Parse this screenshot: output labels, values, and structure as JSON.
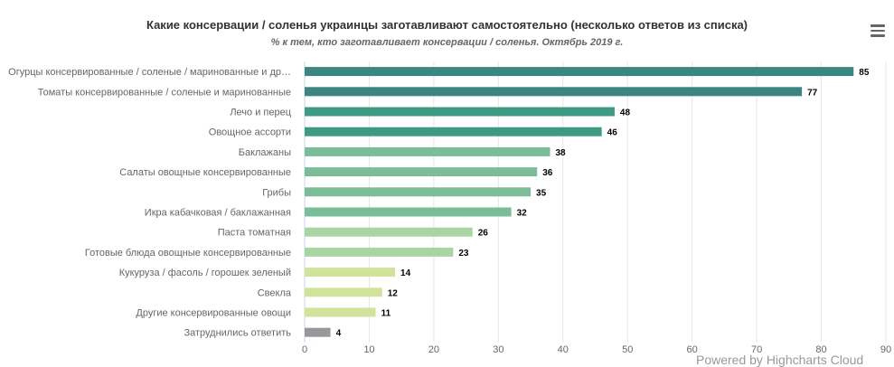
{
  "title": "Какие консервации / соленья украинцы заготавливают самостоятельно (несколько ответов из списка)",
  "subtitle": "% к тем, кто заготавливает консервации / соленья. Октябрь 2019 г.",
  "credit": "Powered by Highcharts Cloud",
  "menu_icon": "hamburger-menu-icon",
  "chart_data": {
    "type": "bar",
    "orientation": "horizontal",
    "title": "Какие консервации / соленья украинцы заготавливают самостоятельно (несколько ответов из списка)",
    "subtitle": "% к тем, кто заготавливает консервации / соленья. Октябрь 2019 г.",
    "categories": [
      "Огурцы консервированные / соленые / маринованные и др…",
      "Томаты консервированные / соленые и маринованные",
      "Лечо и перец",
      "Овощное ассорти",
      "Баклажаны",
      "Салаты овощные консервированные",
      "Грибы",
      "Икра кабачковая / баклажанная",
      "Паста томатная",
      "Готовые блюда овощные консервированные",
      "Кукуруза / фасоль / горошек зеленый",
      "Свекла",
      "Другие консервированные овощи",
      "Затруднились ответить"
    ],
    "values": [
      85,
      77,
      48,
      46,
      38,
      36,
      35,
      32,
      26,
      23,
      14,
      12,
      11,
      4
    ],
    "colors": [
      "#3d8580",
      "#3d8580",
      "#3f9a84",
      "#3f9a84",
      "#7bbd98",
      "#7bbd98",
      "#7bbd98",
      "#7bbd98",
      "#a9d5a4",
      "#a9d5a4",
      "#d1e29b",
      "#d1e29b",
      "#d1e29b",
      "#98989c"
    ],
    "xlim": [
      0,
      90
    ],
    "xticks": [
      0,
      10,
      20,
      30,
      40,
      50,
      60,
      70,
      80,
      90
    ],
    "grid": true,
    "data_labels": true,
    "legend": "none"
  }
}
